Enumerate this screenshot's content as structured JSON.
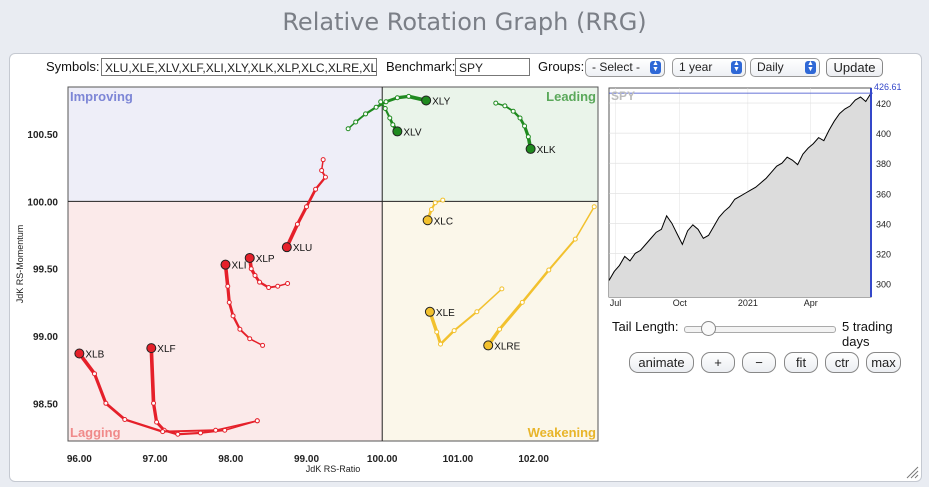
{
  "page_title": "Relative Rotation Graph (RRG)",
  "controls": {
    "symbols_label": "Symbols:",
    "symbols_value": "XLU,XLE,XLV,XLF,XLI,XLY,XLK,XLP,XLC,XLRE,XLB",
    "benchmark_label": "Benchmark:",
    "benchmark_value": "SPY",
    "groups_label": "Groups:",
    "groups_value": "- Select -",
    "period_value": "1 year",
    "interval_value": "Daily",
    "update_label": "Update"
  },
  "tail": {
    "label": "Tail Length:",
    "value": 5,
    "unit_label": "5 trading days"
  },
  "buttons": {
    "animate": "animate",
    "plus": "+",
    "minus": "−",
    "fit": "fit",
    "ctr": "ctr",
    "max": "max"
  },
  "colors": {
    "leading": "#1f8a1f",
    "weakening": "#f2c12e",
    "lagging": "#e5202a",
    "improving": "#7d86d6",
    "benchmark_line": "#000000",
    "price_marker": "#3447c9"
  },
  "chart_data": [
    {
      "type": "scatter",
      "title": "",
      "xlabel": "JdK RS-Ratio",
      "ylabel": "JdK RS-Momentum",
      "xlim": [
        95.85,
        102.85
      ],
      "ylim": [
        98.22,
        100.85
      ],
      "x_ticks": [
        "96.00",
        "97.00",
        "98.00",
        "99.00",
        "100.00",
        "101.00",
        "102.00"
      ],
      "y_ticks": [
        "98.50",
        "99.00",
        "99.50",
        "100.00",
        "100.50"
      ],
      "center": [
        100,
        100
      ],
      "quadrants": {
        "improving": "Improving",
        "leading": "Leading",
        "lagging": "Lagging",
        "weakening": "Weakening"
      },
      "series": [
        {
          "name": "XLY",
          "quadrant": "leading",
          "x": [
            99.55,
            99.65,
            99.78,
            99.92,
            100.05,
            100.2,
            100.35,
            100.58
          ],
          "y": [
            100.54,
            100.59,
            100.65,
            100.7,
            100.74,
            100.77,
            100.78,
            100.75
          ]
        },
        {
          "name": "XLV",
          "quadrant": "leading",
          "x": [
            99.98,
            100.04,
            100.1,
            100.14,
            100.2
          ],
          "y": [
            100.74,
            100.69,
            100.62,
            100.57,
            100.52
          ]
        },
        {
          "name": "XLK",
          "quadrant": "leading",
          "x": [
            101.5,
            101.62,
            101.73,
            101.82,
            101.88,
            101.93,
            101.96
          ],
          "y": [
            100.73,
            100.71,
            100.67,
            100.62,
            100.56,
            100.48,
            100.39
          ]
        },
        {
          "name": "XLU",
          "quadrant": "lagging",
          "x": [
            99.22,
            99.2,
            99.25,
            99.12,
            99.0,
            98.88,
            98.74
          ],
          "y": [
            100.31,
            100.23,
            100.18,
            100.09,
            99.96,
            99.83,
            99.66
          ]
        },
        {
          "name": "XLP",
          "quadrant": "lagging",
          "x": [
            98.75,
            98.62,
            98.5,
            98.38,
            98.32,
            98.27,
            98.25
          ],
          "y": [
            99.39,
            99.37,
            99.36,
            99.4,
            99.45,
            99.5,
            99.58
          ]
        },
        {
          "name": "XLI",
          "quadrant": "lagging",
          "x": [
            98.42,
            98.25,
            98.12,
            98.03,
            97.98,
            97.96,
            97.93
          ],
          "y": [
            98.93,
            98.98,
            99.05,
            99.15,
            99.25,
            99.37,
            99.53
          ]
        },
        {
          "name": "XLF",
          "quadrant": "lagging",
          "x": [
            98.35,
            97.92,
            97.6,
            97.3,
            97.12,
            97.02,
            96.98,
            96.95
          ],
          "y": [
            98.37,
            98.3,
            98.28,
            98.27,
            98.3,
            98.36,
            98.5,
            98.91
          ]
        },
        {
          "name": "XLB",
          "quadrant": "lagging",
          "x": [
            98.35,
            97.8,
            97.1,
            96.6,
            96.35,
            96.2,
            96.0
          ],
          "y": [
            98.37,
            98.3,
            98.29,
            98.38,
            98.5,
            98.72,
            98.87
          ]
        },
        {
          "name": "XLC",
          "quadrant": "weakening",
          "x": [
            100.8,
            100.7,
            100.65,
            100.61,
            100.6
          ],
          "y": [
            100.01,
            99.99,
            99.94,
            99.88,
            99.86
          ]
        },
        {
          "name": "XLE",
          "quadrant": "weakening",
          "x": [
            101.58,
            101.25,
            100.95,
            100.77,
            100.72,
            100.63
          ],
          "y": [
            99.35,
            99.18,
            99.04,
            98.94,
            99.03,
            99.18
          ]
        },
        {
          "name": "XLRE",
          "quadrant": "weakening",
          "x": [
            102.8,
            102.55,
            102.2,
            101.85,
            101.55,
            101.4
          ],
          "y": [
            99.96,
            99.72,
            99.49,
            99.25,
            99.05,
            98.93
          ]
        }
      ]
    },
    {
      "type": "line",
      "title": "SPY",
      "x_ticks": [
        "Jul",
        "Oct",
        "2021",
        "Apr"
      ],
      "y_ticks": [
        "300",
        "320",
        "340",
        "360",
        "380",
        "400",
        "420"
      ],
      "ylim": [
        291,
        430
      ],
      "last_value_label": "426.61",
      "x": [
        0,
        0.02,
        0.04,
        0.06,
        0.08,
        0.1,
        0.12,
        0.14,
        0.16,
        0.18,
        0.2,
        0.22,
        0.24,
        0.26,
        0.28,
        0.3,
        0.32,
        0.34,
        0.36,
        0.38,
        0.4,
        0.42,
        0.44,
        0.46,
        0.48,
        0.5,
        0.52,
        0.54,
        0.56,
        0.58,
        0.6,
        0.62,
        0.64,
        0.66,
        0.68,
        0.7,
        0.72,
        0.74,
        0.76,
        0.78,
        0.8,
        0.82,
        0.84,
        0.86,
        0.88,
        0.9,
        0.92,
        0.94,
        0.96,
        0.98,
        1.0
      ],
      "y": [
        302,
        308,
        312,
        318,
        315,
        320,
        322,
        326,
        330,
        334,
        336,
        345,
        340,
        333,
        326,
        335,
        339,
        336,
        330,
        332,
        338,
        344,
        348,
        351,
        356,
        358,
        360,
        362,
        364,
        367,
        370,
        374,
        378,
        380,
        384,
        382,
        379,
        386,
        390,
        393,
        397,
        395,
        402,
        408,
        413,
        416,
        418,
        422,
        424,
        421,
        426.6
      ]
    }
  ]
}
